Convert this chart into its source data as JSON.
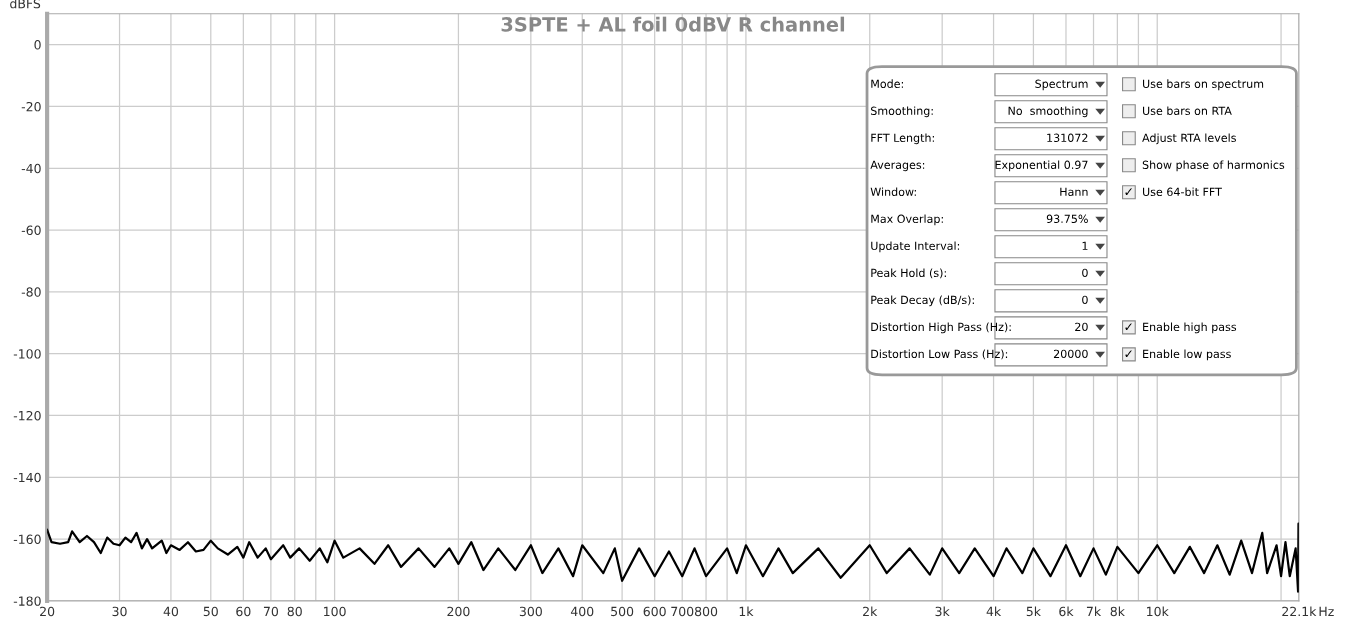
{
  "chart_data": {
    "type": "line",
    "title": "3SPTE + AL foil 0dBV R channel",
    "xlabel": "Hz",
    "ylabel": "dBFS",
    "log": "x",
    "grid": true,
    "legend": false,
    "xlim": [
      20,
      22100
    ],
    "ylim": [
      -180,
      10
    ],
    "xticks": [
      20,
      30,
      40,
      50,
      60,
      70,
      80,
      {
        "value": 90,
        "label": null
      },
      100,
      200,
      300,
      400,
      500,
      600,
      700,
      800,
      {
        "value": 900,
        "label": null
      },
      {
        "value": 1000,
        "label": "1k"
      },
      {
        "value": 2000,
        "label": "2k"
      },
      {
        "value": 3000,
        "label": "3k"
      },
      {
        "value": 4000,
        "label": "4k"
      },
      {
        "value": 5000,
        "label": "5k"
      },
      {
        "value": 6000,
        "label": "6k"
      },
      {
        "value": 7000,
        "label": "7k"
      },
      {
        "value": 8000,
        "label": "8k"
      },
      {
        "value": 9000,
        "label": null
      },
      {
        "value": 10000,
        "label": "10k"
      },
      {
        "value": 20000,
        "label": null
      },
      {
        "value": 22100,
        "label": "22.1k"
      }
    ],
    "yticks": [
      -180,
      -160,
      -140,
      -120,
      -100,
      -80,
      -60,
      -40,
      -20,
      0
    ],
    "series": [
      {
        "color": "#000000",
        "x": [
          20,
          20.5,
          21.5,
          22.5,
          23,
          24,
          25,
          26,
          27,
          28,
          29,
          30,
          31,
          32,
          33,
          34,
          35,
          36,
          38,
          39,
          40,
          42,
          44,
          46,
          48,
          50,
          52,
          55,
          58,
          60,
          62,
          65,
          68,
          70,
          75,
          78,
          82,
          87,
          92,
          96,
          100,
          105,
          115,
          125,
          135,
          145,
          160,
          175,
          190,
          200,
          215,
          230,
          250,
          275,
          300,
          320,
          350,
          380,
          400,
          450,
          480,
          500,
          550,
          600,
          650,
          700,
          750,
          800,
          900,
          950,
          1000,
          1100,
          1200,
          1300,
          1500,
          1700,
          2000,
          2200,
          2500,
          2800,
          3000,
          3300,
          3600,
          4000,
          4300,
          4700,
          5000,
          5500,
          6000,
          6500,
          7000,
          7500,
          8000,
          9000,
          10000,
          11000,
          12000,
          13000,
          14000,
          15000,
          16000,
          17000,
          18000,
          18500,
          19500,
          20000,
          20500,
          21000,
          21700,
          22000,
          22050,
          22100
        ],
        "values": [
          -157,
          -161,
          -161.5,
          -161,
          -157.5,
          -161,
          -159,
          -161,
          -164.5,
          -159.5,
          -161.5,
          -162,
          -159.5,
          -161,
          -158,
          -163,
          -160,
          -163,
          -160.5,
          -164.5,
          -162,
          -163.5,
          -161,
          -164,
          -163.5,
          -160.5,
          -163,
          -165,
          -162.5,
          -166,
          -161,
          -166,
          -163,
          -166.5,
          -162,
          -166,
          -163,
          -167,
          -163,
          -167.5,
          -160.5,
          -166,
          -163,
          -168,
          -162,
          -169,
          -163,
          -169,
          -163,
          -168,
          -161,
          -170,
          -163,
          -170,
          -162,
          -171,
          -163,
          -172,
          -162,
          -171,
          -163,
          -173.5,
          -163,
          -172,
          -164,
          -172,
          -163,
          -172,
          -163,
          -171,
          -162,
          -172,
          -163,
          -171,
          -163,
          -172.5,
          -162,
          -171,
          -163,
          -171.5,
          -163,
          -171,
          -163,
          -172,
          -163,
          -171,
          -163,
          -172,
          -162,
          -172,
          -163,
          -171.5,
          -162.5,
          -171,
          -162,
          -171,
          -162.5,
          -171,
          -162,
          -171.5,
          -160.5,
          -171,
          -158,
          -171,
          -162,
          -172,
          -161,
          -172,
          -163,
          -177,
          -155,
          -174
        ]
      }
    ],
    "annotations": [
      "Mode:",
      "Smoothing:",
      "FFT Length:",
      "Averages:",
      "Window:",
      "Max Overlap:",
      "Update Interval:",
      "Peak Hold (s):",
      "Peak Decay (dB/s):",
      "Distortion High Pass (Hz):",
      "Distortion Low Pass (Hz):",
      "Spectrum",
      "No  smoothing",
      "131072",
      "Exponential 0.97",
      "Hann",
      "93.75%",
      "1",
      "0",
      "0",
      "20",
      "20000",
      "Use bars on spectrum",
      "Use bars on RTA",
      "Adjust RTA levels",
      "Show phase of harmonics",
      "✓ Use 64-bit FFT",
      "✓ Enable high pass",
      "✓ Enable low pass"
    ]
  }
}
